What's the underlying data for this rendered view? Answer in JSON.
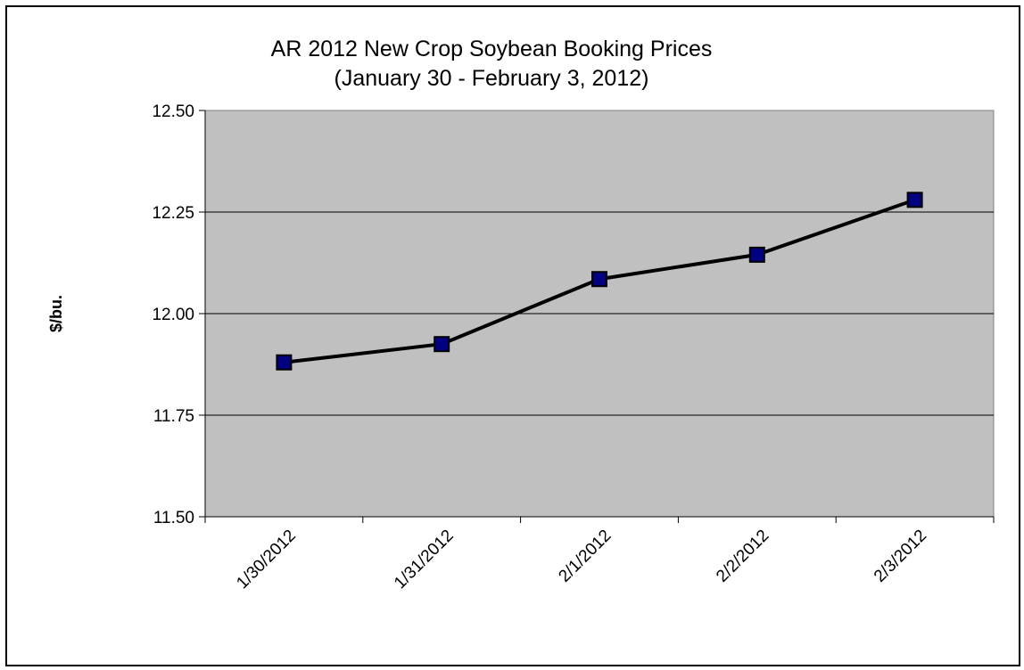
{
  "chart_data": {
    "type": "line",
    "title": "AR 2012 New Crop Soybean Booking Prices",
    "subtitle": "(January 30 - February 3, 2012)",
    "xlabel": "",
    "ylabel": "$/bu.",
    "categories": [
      "1/30/2012",
      "1/31/2012",
      "2/1/2012",
      "2/2/2012",
      "2/3/2012"
    ],
    "series": [
      {
        "values": [
          11.88,
          11.925,
          12.085,
          12.145,
          12.28
        ]
      }
    ],
    "ylim": [
      11.5,
      12.5
    ],
    "yticks": [
      "11.50",
      "11.75",
      "12.00",
      "12.25",
      "12.50"
    ],
    "grid": true,
    "legend": "none",
    "colors": {
      "plot_background": "#c0c0c0",
      "line": "#000000",
      "marker_fill": "#000080",
      "marker_stroke": "#000000",
      "gridline": "#000000"
    }
  }
}
